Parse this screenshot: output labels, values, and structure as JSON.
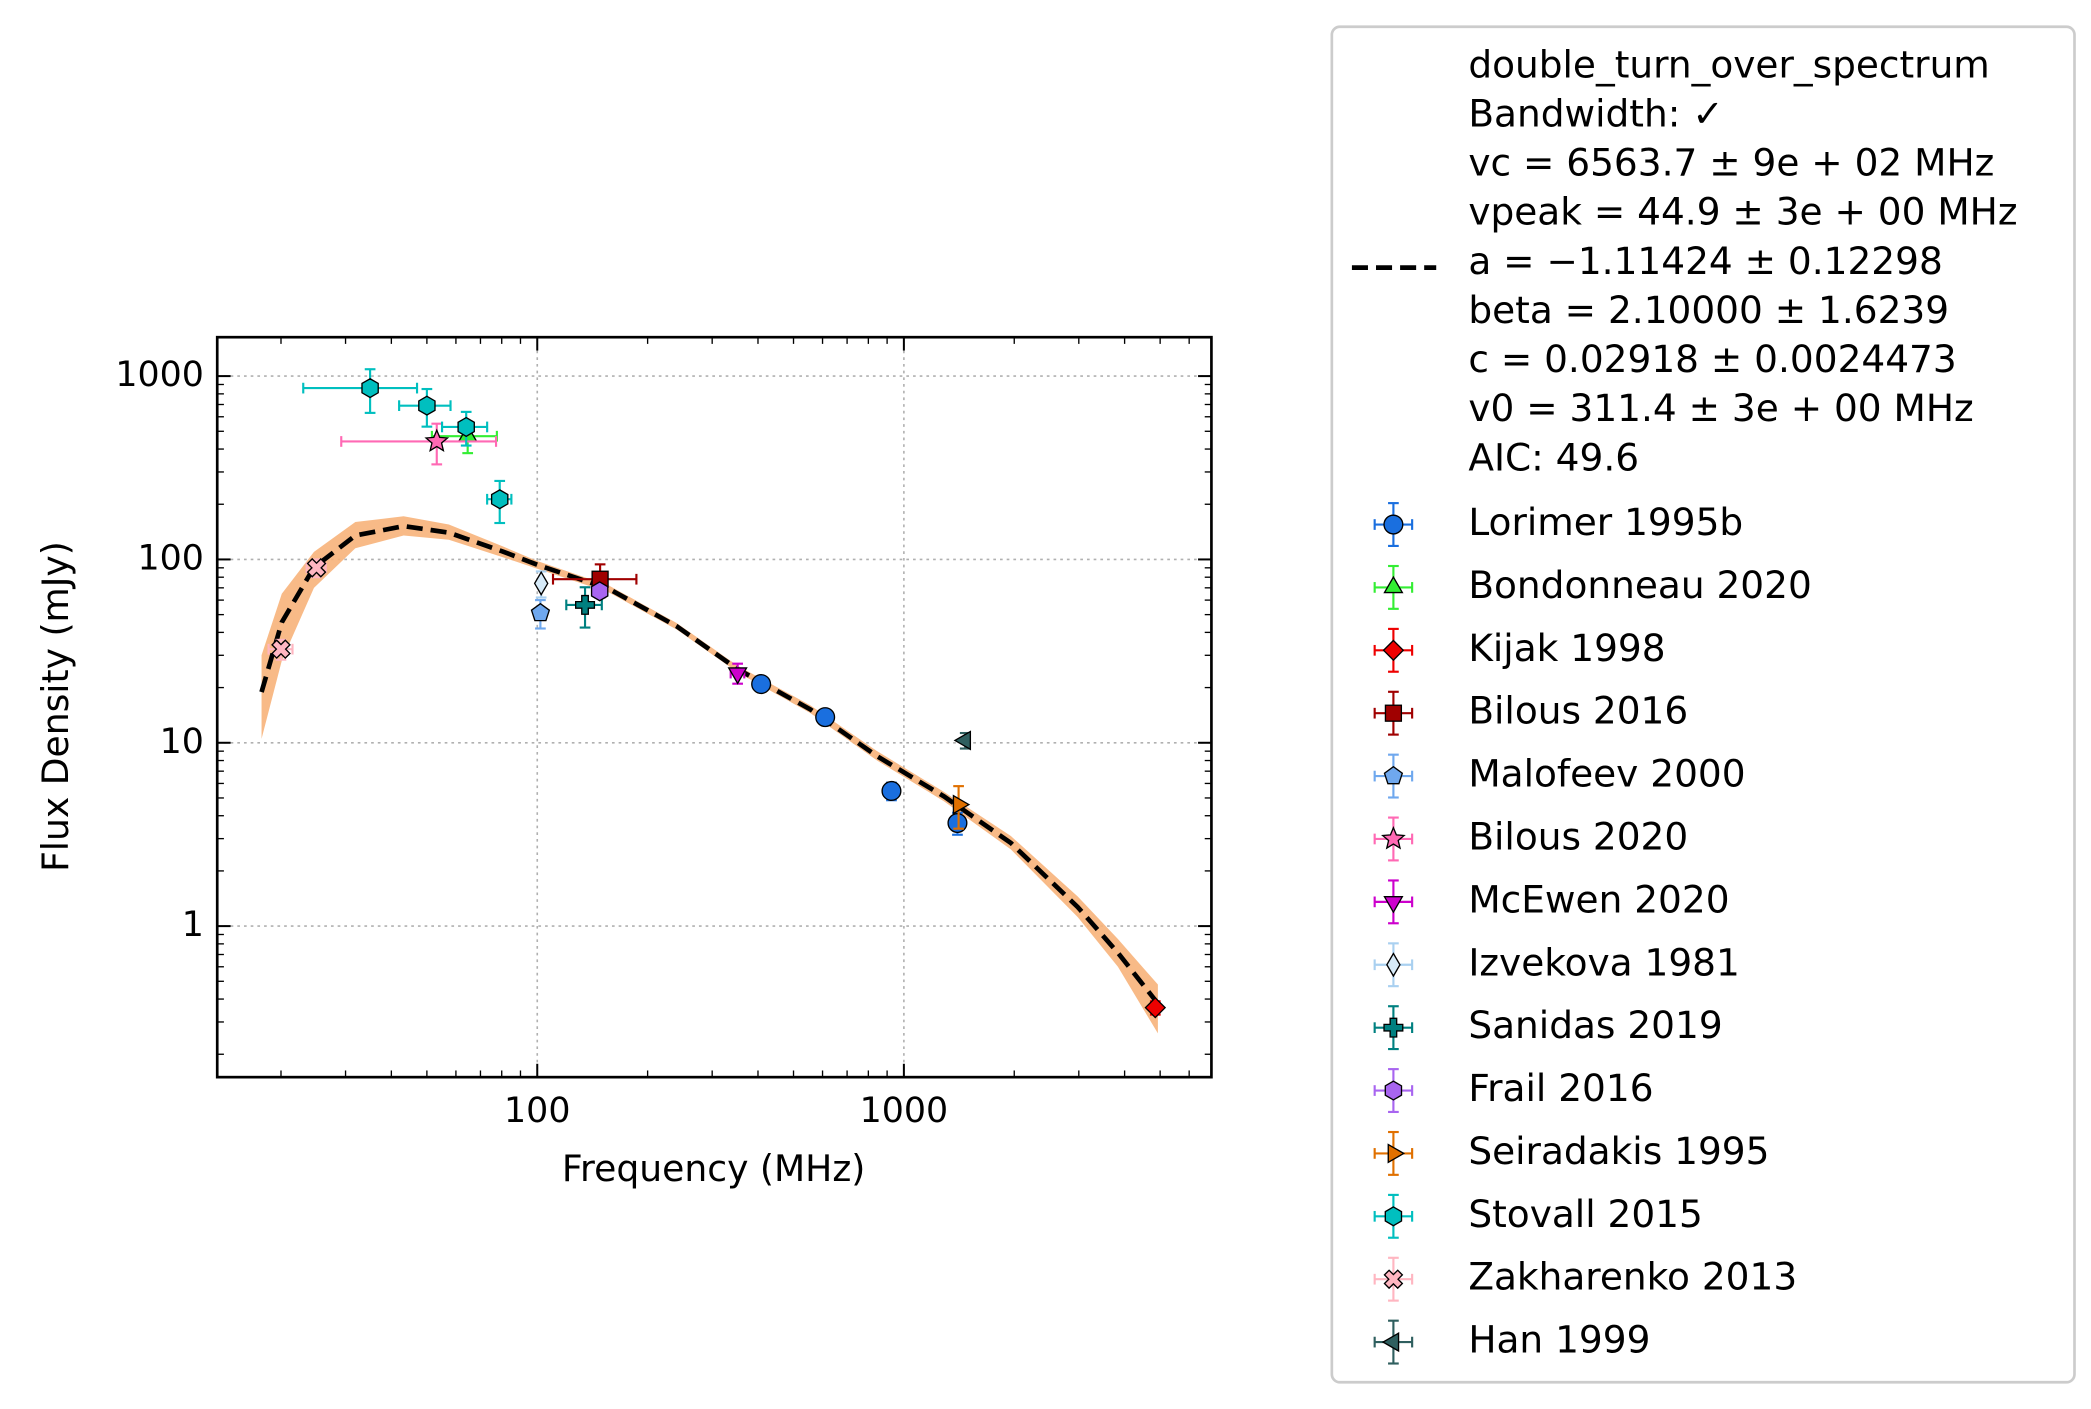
{
  "chart_data": {
    "type": "scatter",
    "xlabel": "Frequency (MHz)",
    "ylabel": "Flux Density (mJy)",
    "xscale": "log",
    "yscale": "log",
    "xlim": [
      13.4,
      6900
    ],
    "ylim": [
      0.15,
      1630
    ],
    "xticks": [
      100,
      1000
    ],
    "yticks": [
      1,
      10,
      100,
      1000
    ],
    "grid": true,
    "legend": "outside right",
    "fit": {
      "label": [
        "double_turn_over_spectrum",
        "Bandwidth: ✓",
        "vc = 6563.7 ± 9e + 02 MHz",
        "vpeak = 44.9 ± 3e + 00 MHz",
        "a = −1.11424 ± 0.12298",
        "beta = 2.10000 ± 1.6239",
        "c = 0.02918 ± 0.0024473",
        "v0 = 311.4 ± 3e + 00 MHz",
        "AIC: 49.6"
      ],
      "color": "#000000",
      "band_color": "#f7b27a",
      "x": [
        17.7,
        20.1,
        24.6,
        31.9,
        43.2,
        57.4,
        80.4,
        100,
        157,
        240,
        352,
        556,
        845,
        1286,
        1958,
        2980,
        3835,
        4930
      ],
      "values": [
        18.9,
        45.4,
        90.4,
        135,
        152,
        140,
        110.6,
        93.5,
        69,
        43.2,
        25.2,
        15.2,
        8.45,
        5.1,
        2.84,
        1.27,
        0.715,
        0.378
      ],
      "lower": [
        10.5,
        28,
        70,
        115,
        135,
        128,
        103,
        89,
        66,
        41.5,
        24.2,
        14.5,
        8,
        4.8,
        2.62,
        1.12,
        0.6,
        0.26
      ],
      "upper": [
        30,
        65,
        110,
        160,
        172,
        155,
        118,
        98,
        72,
        45,
        26.3,
        16,
        9,
        5.4,
        3.1,
        1.45,
        0.85,
        0.48
      ]
    },
    "series": [
      {
        "name": "Lorimer 1995b",
        "color": "#1a6fdf",
        "ecolor": "#1a6fdf",
        "marker": "circle",
        "x": [
          408,
          610,
          925,
          1400
        ],
        "values": [
          20.9,
          13.8,
          5.46,
          3.65
        ],
        "xerr": [
          10,
          15,
          20,
          30
        ],
        "yerr": [
          1.5,
          1,
          0.6,
          0.5
        ]
      },
      {
        "name": "Bondonneau 2020",
        "color": "#33ee33",
        "ecolor": "#33ee33",
        "marker": "triangle-up",
        "x": [
          64.6
        ],
        "values": [
          470
        ],
        "xerr": [
          13
        ],
        "yerr": [
          90
        ]
      },
      {
        "name": "Kijak 1998",
        "color": "#ee0000",
        "ecolor": "#ee0000",
        "marker": "diamond",
        "x": [
          4850
        ],
        "values": [
          0.359
        ],
        "xerr": [
          0
        ],
        "yerr": [
          0.03
        ]
      },
      {
        "name": "Bilous 2016",
        "color": "#a00000",
        "ecolor": "#a00000",
        "marker": "square",
        "x": [
          148.4
        ],
        "values": [
          78
        ],
        "xerr": [
          38
        ],
        "yerr": [
          16
        ]
      },
      {
        "name": "Malofeev 2000",
        "color": "#6fa8ee",
        "ecolor": "#6fa8ee",
        "marker": "pentagon",
        "x": [
          102
        ],
        "values": [
          51
        ],
        "xerr": [
          3
        ],
        "yerr": [
          9
        ]
      },
      {
        "name": "Bilous 2020",
        "color": "#ff69b4",
        "ecolor": "#ff69b4",
        "marker": "star",
        "x": [
          53.2
        ],
        "values": [
          440
        ],
        "xerr": [
          24
        ],
        "yerr": [
          110
        ]
      },
      {
        "name": "McEwen 2020",
        "color": "#cc00cc",
        "ecolor": "#cc00cc",
        "marker": "triangle-down",
        "x": [
          352
        ],
        "values": [
          24
        ],
        "xerr": [
          15
        ],
        "yerr": [
          3
        ]
      },
      {
        "name": "Izvekova 1981",
        "color": "#d6eaf8",
        "ecolor": "#a9d0f0",
        "marker": "thin-diamond",
        "x": [
          102.5
        ],
        "values": [
          74
        ],
        "xerr": [
          2
        ],
        "yerr": [
          12
        ]
      },
      {
        "name": "Sanidas 2019",
        "color": "#008080",
        "ecolor": "#008080",
        "marker": "plus",
        "x": [
          135
        ],
        "values": [
          56.5
        ],
        "xerr": [
          15
        ],
        "yerr": [
          14
        ]
      },
      {
        "name": "Frail 2016",
        "color": "#a865f0",
        "ecolor": "#a865f0",
        "marker": "hexagon",
        "x": [
          148
        ],
        "values": [
          67
        ],
        "xerr": [
          5
        ],
        "yerr": [
          5
        ]
      },
      {
        "name": "Seiradakis 1995",
        "color": "#e07000",
        "ecolor": "#e07000",
        "marker": "triangle-right",
        "x": [
          1410
        ],
        "values": [
          4.6
        ],
        "xerr": [
          10
        ],
        "yerr": [
          1.2
        ]
      },
      {
        "name": "Stovall 2015",
        "color": "#00bfbf",
        "ecolor": "#00bfbf",
        "marker": "hexagon",
        "x": [
          35,
          50,
          64,
          79
        ],
        "values": [
          860,
          690,
          528,
          213
        ],
        "xerr": [
          12,
          8,
          9,
          6
        ],
        "yerr": [
          230,
          160,
          110,
          55
        ]
      },
      {
        "name": "Zakharenko 2013",
        "color": "#ffb6c1",
        "ecolor": "#ffb6c1",
        "marker": "x",
        "x": [
          25,
          20
        ],
        "values": [
          90,
          32.4
        ],
        "xerr": [
          1.5,
          1.5
        ],
        "yerr": [
          10,
          4
        ]
      },
      {
        "name": "Han 1999",
        "color": "#2f5f5f",
        "ecolor": "#2f5f5f",
        "marker": "triangle-left",
        "x": [
          1470
        ],
        "values": [
          10.3
        ],
        "xerr": [
          0
        ],
        "yerr": [
          1
        ]
      }
    ]
  }
}
